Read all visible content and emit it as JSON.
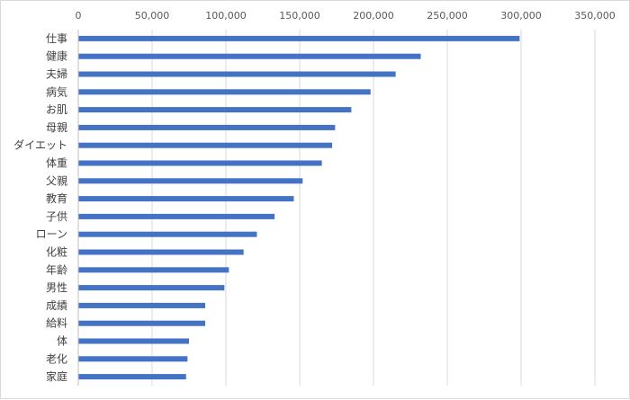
{
  "chart_data": {
    "type": "bar",
    "orientation": "horizontal",
    "title": "",
    "xlabel": "",
    "ylabel": "",
    "xlim": [
      0,
      350000
    ],
    "x_ticks": [
      0,
      50000,
      100000,
      150000,
      200000,
      250000,
      300000,
      350000
    ],
    "x_tick_labels": [
      "0",
      "50,000",
      "100,000",
      "150,000",
      "200,000",
      "250,000",
      "300,000",
      "350,000"
    ],
    "x_axis_position": "top",
    "grid": true,
    "legend": "none",
    "bar_color": "#4472c4",
    "grid_color": "#d9d9d9",
    "categories": [
      "仕事",
      "健康",
      "夫婦",
      "病気",
      "お肌",
      "母親",
      "ダイエット",
      "体重",
      "父親",
      "教育",
      "子供",
      "ローン",
      "化粧",
      "年齢",
      "男性",
      "成績",
      "給料",
      "体",
      "老化",
      "家庭"
    ],
    "values": [
      299000,
      232000,
      215000,
      198000,
      185000,
      174000,
      172000,
      165000,
      152000,
      146000,
      133000,
      121000,
      112000,
      102000,
      99000,
      86000,
      86000,
      75000,
      74000,
      73000
    ]
  }
}
